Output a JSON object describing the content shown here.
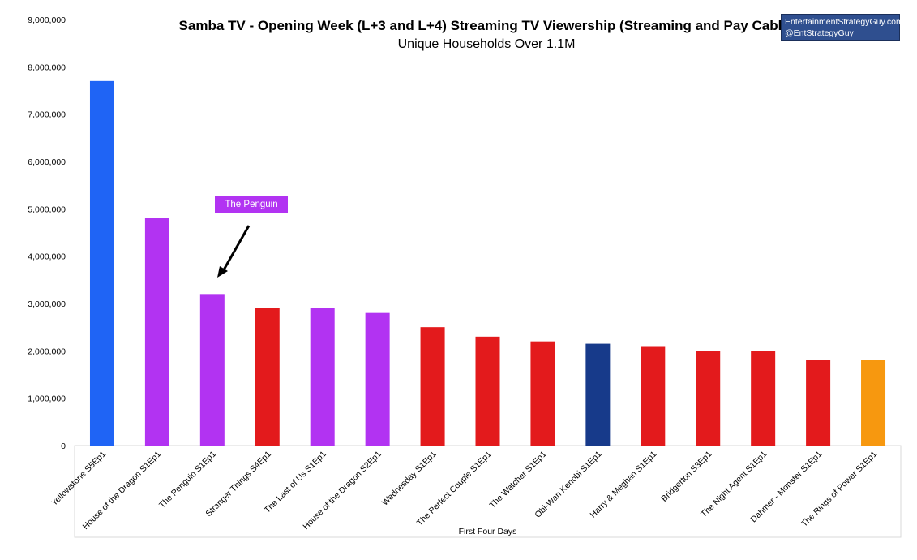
{
  "header": {
    "title": "Samba TV - Opening Week (L+3 and L+4) Streaming TV Viewership (Streaming and Pay Cable)",
    "subtitle": "Unique Households Over 1.1M"
  },
  "brand": {
    "line1": "EntertainmentStrategyGuy.com",
    "line2": "@EntStrategyGuy"
  },
  "annotation": {
    "label": "The Penguin"
  },
  "chart_data": {
    "type": "bar",
    "title": "Samba TV - Opening Week (L+3 and L+4) Streaming TV Viewership (Streaming and Pay Cable)",
    "subtitle": "Unique Households Over 1.1M",
    "xlabel": "First Four Days",
    "ylabel": "",
    "ylim": [
      0,
      9000000
    ],
    "yticks": [
      0,
      1000000,
      2000000,
      3000000,
      4000000,
      5000000,
      6000000,
      7000000,
      8000000,
      9000000
    ],
    "ytick_labels": [
      "0",
      "1,000,000",
      "2,000,000",
      "3,000,000",
      "4,000,000",
      "5,000,000",
      "6,000,000",
      "7,000,000",
      "8,000,000",
      "9,000,000"
    ],
    "grid": false,
    "categories": [
      "Yellowstone S5Ep1",
      "House of the Dragon S1Ep1",
      "The Penguin S1Ep1",
      "Stranger Things S4Ep1",
      "The Last of Us S1Ep1",
      "House of the Dragon S2Ep1",
      "Wednesday S1Ep1",
      "The Perfect Couple S1Ep1",
      "The Watcher S1Ep1",
      "Obi-Wan Kenobi S1Ep1",
      "Harry & Meghan S1Ep1",
      "Bridgerton S3Ep1",
      "The Night Agent S1Ep1",
      "Dahmer - Monster S1Ep1",
      "The Rings of Power S1Ep1"
    ],
    "values": [
      7700000,
      4800000,
      3200000,
      2900000,
      2900000,
      2800000,
      2500000,
      2300000,
      2200000,
      2150000,
      2100000,
      2000000,
      2000000,
      1800000,
      1800000
    ],
    "colors": [
      "#1f64f5",
      "#b233f2",
      "#b233f2",
      "#e31a1c",
      "#b233f2",
      "#b233f2",
      "#e31a1c",
      "#e31a1c",
      "#e31a1c",
      "#173a8a",
      "#e31a1c",
      "#e31a1c",
      "#e31a1c",
      "#e31a1c",
      "#f7980f"
    ]
  }
}
